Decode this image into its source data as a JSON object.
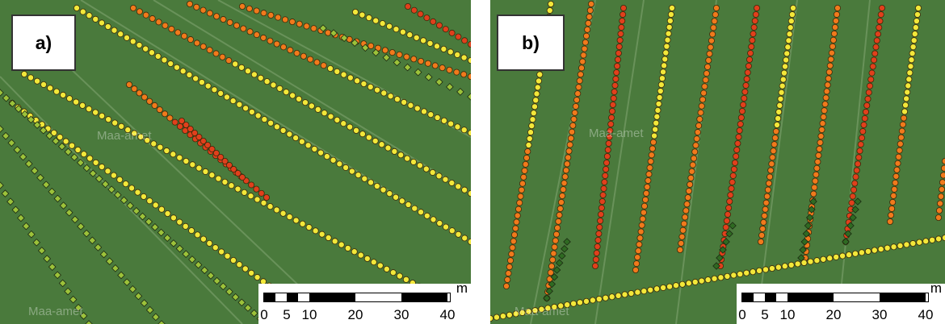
{
  "panels": [
    {
      "id": "a",
      "label": "a)",
      "watermarks": [
        "Maa-amet",
        "Maa-amet"
      ],
      "scale_bar": {
        "unit": "m",
        "ticks": [
          "0",
          "5",
          "10",
          "20",
          "30",
          "40"
        ]
      }
    },
    {
      "id": "b",
      "label": "b)",
      "watermarks": [
        "Maa-amet",
        "Maa-amet"
      ],
      "scale_bar": {
        "unit": "m",
        "ticks": [
          "0",
          "5",
          "10",
          "20",
          "30",
          "40"
        ]
      }
    }
  ],
  "colors": {
    "field_green": "#4a7a3c",
    "marker_red": "#e0401c",
    "marker_orange": "#f07a1c",
    "marker_yellow": "#f2e83a",
    "marker_lightgreen": "#9cc23a",
    "marker_darkgreen": "#2f6a22"
  }
}
